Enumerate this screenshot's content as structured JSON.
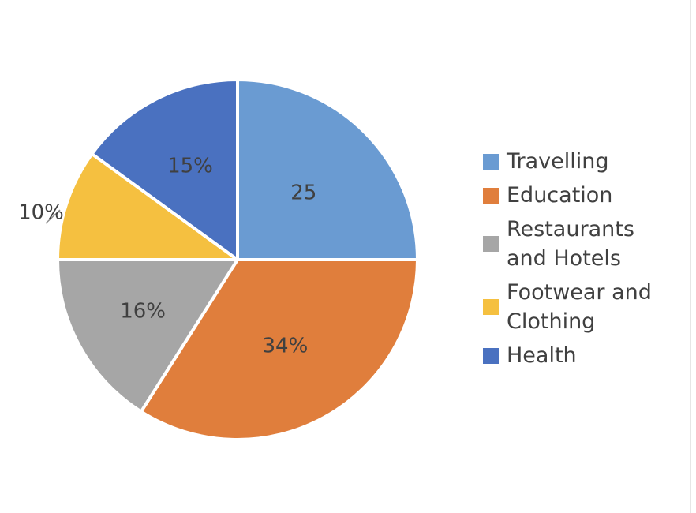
{
  "chart_data": {
    "type": "pie",
    "slices": [
      {
        "category": "Travelling",
        "value": 25,
        "label": "25",
        "color": "#6a9bd2"
      },
      {
        "category": "Education",
        "value": 34,
        "label": "34%",
        "color": "#e07e3c"
      },
      {
        "category": "Restaurants and Hotels",
        "value": 16,
        "label": "16%",
        "color": "#a6a6a6"
      },
      {
        "category": "Footwear and Clothing",
        "value": 10,
        "label": "10%",
        "color": "#f5c040"
      },
      {
        "category": "Health",
        "value": 15,
        "label": "15%",
        "color": "#4a71c0"
      }
    ],
    "legend_position": "right",
    "start_angle_deg": 0,
    "direction": "clockwise"
  },
  "legend": {
    "items": [
      {
        "label_lines": [
          "Travelling"
        ],
        "color": "#6a9bd2"
      },
      {
        "label_lines": [
          "Education"
        ],
        "color": "#e07e3c"
      },
      {
        "label_lines": [
          "Restaurants",
          "and Hotels"
        ],
        "color": "#a6a6a6"
      },
      {
        "label_lines": [
          "Footwear and",
          "Clothing"
        ],
        "color": "#f5c040"
      },
      {
        "label_lines": [
          "Health"
        ],
        "color": "#4a71c0"
      }
    ]
  }
}
